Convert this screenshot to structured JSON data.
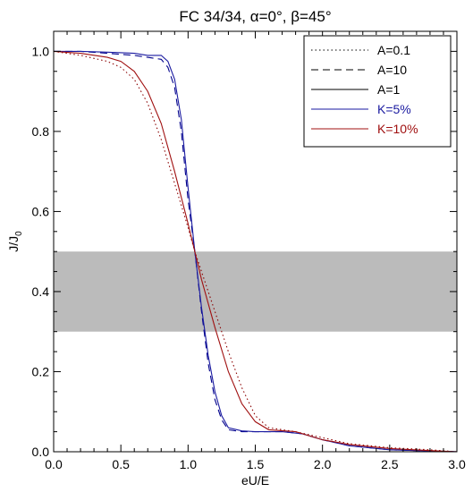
{
  "chart_data": {
    "type": "line",
    "title": "FC 34/34, α=0°, β=45°",
    "xlabel": "eU/E",
    "ylabel_main": "J/J",
    "ylabel_sub": "0",
    "xlim": [
      0.0,
      3.0
    ],
    "ylim": [
      0.0,
      1.05
    ],
    "xticks": [
      0.0,
      0.5,
      1.0,
      1.5,
      2.0,
      2.5,
      3.0
    ],
    "xtick_labels": [
      "0.0",
      "0.5",
      "1.0",
      "1.5",
      "2.0",
      "2.5",
      "3.0"
    ],
    "yticks": [
      0.0,
      0.2,
      0.4,
      0.6,
      0.8,
      1.0
    ],
    "ytick_labels": [
      "0.0",
      "0.2",
      "0.4",
      "0.6",
      "0.8",
      "1.0"
    ],
    "band": {
      "y_low": 0.3,
      "y_high": 0.5,
      "color": "#bbbbbb"
    },
    "grid": false,
    "legend_position": "top-right",
    "series": [
      {
        "name": "A=0.1",
        "style": "dotted",
        "color": "#8b0000",
        "x": [
          0.0,
          0.2,
          0.4,
          0.5,
          0.6,
          0.7,
          0.8,
          0.9,
          1.0,
          1.05,
          1.1,
          1.2,
          1.3,
          1.4,
          1.5,
          1.6,
          1.8,
          2.0,
          2.2,
          2.5,
          2.8,
          3.0
        ],
        "y": [
          1.0,
          0.99,
          0.975,
          0.96,
          0.93,
          0.87,
          0.78,
          0.67,
          0.56,
          0.5,
          0.45,
          0.35,
          0.25,
          0.16,
          0.09,
          0.06,
          0.05,
          0.035,
          0.02,
          0.01,
          0.005,
          0.0
        ]
      },
      {
        "name": "A=10",
        "style": "dashed",
        "color": "#00008b",
        "x": [
          0.0,
          0.2,
          0.4,
          0.6,
          0.7,
          0.8,
          0.85,
          0.9,
          0.95,
          1.0,
          1.05,
          1.1,
          1.15,
          1.2,
          1.25,
          1.3,
          1.4,
          1.5,
          1.7,
          1.85,
          2.0,
          2.2,
          2.5,
          3.0
        ],
        "y": [
          1.0,
          1.0,
          0.995,
          0.99,
          0.985,
          0.98,
          0.96,
          0.91,
          0.8,
          0.63,
          0.5,
          0.35,
          0.22,
          0.13,
          0.08,
          0.055,
          0.05,
          0.05,
          0.05,
          0.045,
          0.03,
          0.015,
          0.005,
          0.0
        ]
      },
      {
        "name": "A=1",
        "style": "solid",
        "color": "#000000",
        "x": [
          0.0,
          3.0
        ],
        "y": [
          1.0,
          0.0
        ]
      },
      {
        "name": "K=5%",
        "style": "solid",
        "color": "#1a1aa0",
        "x": [
          0.0,
          0.2,
          0.4,
          0.6,
          0.7,
          0.8,
          0.85,
          0.9,
          0.95,
          1.0,
          1.05,
          1.1,
          1.15,
          1.2,
          1.25,
          1.3,
          1.4,
          1.5,
          1.7,
          1.85,
          2.0,
          2.2,
          2.5,
          3.0
        ],
        "y": [
          1.0,
          1.0,
          0.998,
          0.995,
          0.99,
          0.99,
          0.975,
          0.93,
          0.83,
          0.66,
          0.5,
          0.36,
          0.24,
          0.15,
          0.09,
          0.06,
          0.052,
          0.05,
          0.05,
          0.045,
          0.03,
          0.015,
          0.005,
          0.0
        ]
      },
      {
        "name": "K=10%",
        "style": "solid",
        "color": "#a01010",
        "x": [
          0.0,
          0.2,
          0.4,
          0.5,
          0.6,
          0.7,
          0.8,
          0.9,
          1.0,
          1.05,
          1.1,
          1.2,
          1.3,
          1.4,
          1.5,
          1.6,
          1.8,
          2.0,
          2.2,
          2.5,
          2.8,
          3.0
        ],
        "y": [
          1.0,
          0.995,
          0.985,
          0.975,
          0.95,
          0.9,
          0.82,
          0.7,
          0.57,
          0.5,
          0.43,
          0.31,
          0.2,
          0.12,
          0.075,
          0.055,
          0.05,
          0.03,
          0.018,
          0.008,
          0.003,
          0.0
        ]
      }
    ]
  }
}
